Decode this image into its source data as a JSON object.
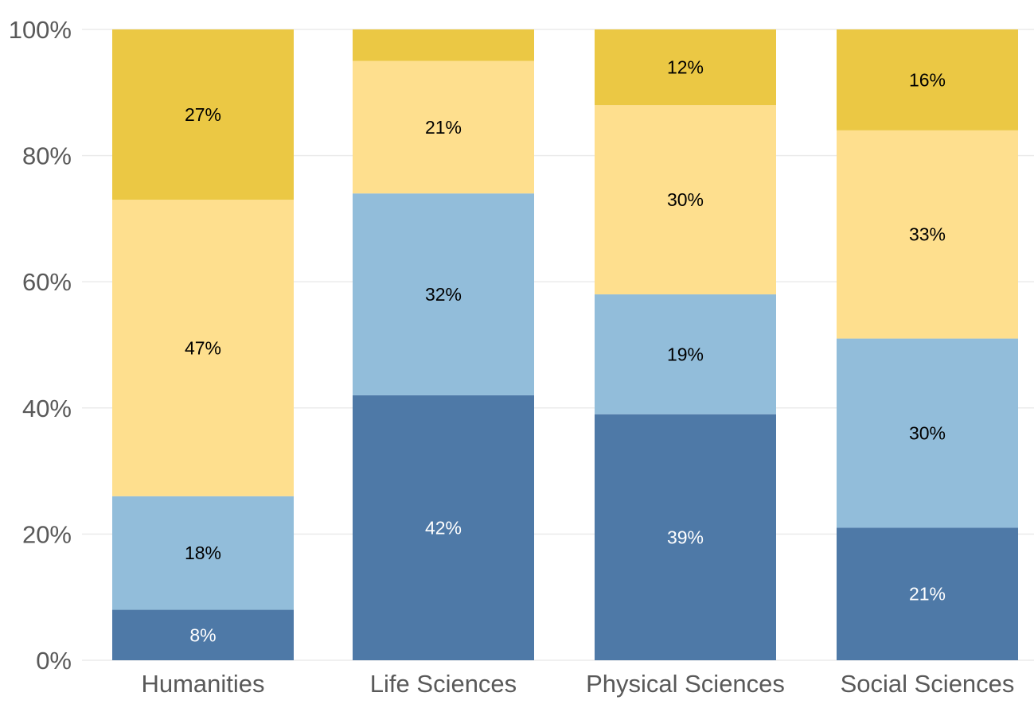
{
  "chart_data": {
    "type": "bar",
    "stacked": true,
    "normalized_percent": true,
    "categories": [
      "Humanities",
      "Life Sciences",
      "Physical Sciences",
      "Social Sciences"
    ],
    "series": [
      {
        "color": "#4e79a7",
        "label_color": "#ffffff",
        "values": [
          8,
          42,
          39,
          21
        ],
        "labels": [
          "8%",
          "42%",
          "39%",
          "21%"
        ]
      },
      {
        "color": "#92bdda",
        "label_color": "#000000",
        "values": [
          18,
          32,
          19,
          30
        ],
        "labels": [
          "18%",
          "32%",
          "19%",
          "30%"
        ]
      },
      {
        "color": "#fedf8e",
        "label_color": "#000000",
        "values": [
          47,
          21,
          30,
          33
        ],
        "labels": [
          "47%",
          "21%",
          "30%",
          "33%"
        ]
      },
      {
        "color": "#ebc844",
        "label_color": "#000000",
        "values": [
          27,
          5,
          12,
          16
        ],
        "labels": [
          "27%",
          "",
          "12%",
          "16%"
        ]
      }
    ],
    "yticks": [
      "0%",
      "20%",
      "40%",
      "60%",
      "80%",
      "100%"
    ],
    "ylim": [
      0,
      100
    ],
    "grid": true,
    "title": "",
    "xlabel": "",
    "ylabel": ""
  }
}
